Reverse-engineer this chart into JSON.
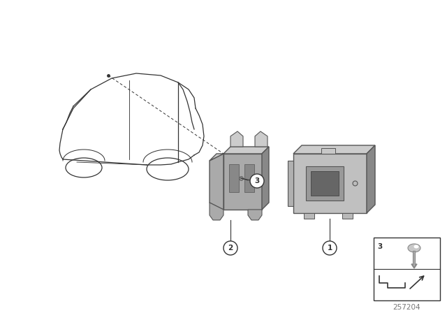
{
  "bg_color": "#ffffff",
  "line_color": "#333333",
  "part_fill": "#aaaaaa",
  "part_dark": "#888888",
  "part_light": "#cccccc",
  "part_outline": "#555555",
  "diagram_number": "257204",
  "figsize": [
    6.4,
    4.48
  ],
  "dpi": 100
}
